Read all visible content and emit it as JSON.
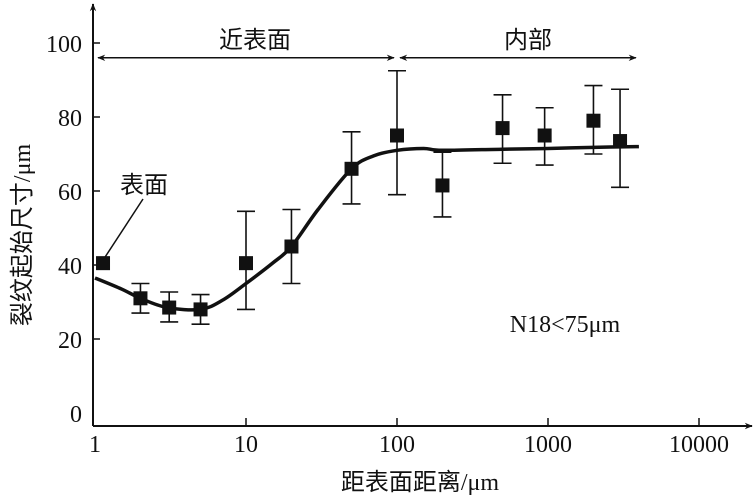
{
  "chart_data": {
    "type": "scatter",
    "xscale": "log",
    "xlabel": "距表面距离/μm",
    "ylabel": "裂纹起始尺寸/μm",
    "xlim": [
      1,
      10000
    ],
    "ylim": [
      0,
      100
    ],
    "x_ticks": [
      1,
      10,
      100,
      1000,
      10000
    ],
    "x_tick_labels": [
      "1",
      "10",
      "100",
      "1000",
      "10000"
    ],
    "y_ticks": [
      0,
      20,
      40,
      60,
      80,
      100
    ],
    "y_tick_labels": [
      "0",
      "20",
      "40",
      "60",
      "80",
      "100"
    ],
    "grid": false,
    "points": [
      {
        "x": 1.13,
        "y": 40.5,
        "err_low": null,
        "err_high": null
      },
      {
        "x": 2,
        "y": 31,
        "err_low": 27,
        "err_high": 35
      },
      {
        "x": 3.1,
        "y": 28.5,
        "err_low": 24.6,
        "err_high": 32.7
      },
      {
        "x": 5,
        "y": 28,
        "err_low": 24,
        "err_high": 32
      },
      {
        "x": 10,
        "y": 40.5,
        "err_low": 28,
        "err_high": 54.5
      },
      {
        "x": 20,
        "y": 45,
        "err_low": 35,
        "err_high": 55
      },
      {
        "x": 50,
        "y": 66,
        "err_low": 56.5,
        "err_high": 76
      },
      {
        "x": 100,
        "y": 75,
        "err_low": 59,
        "err_high": 92.5
      },
      {
        "x": 200,
        "y": 61.5,
        "err_low": 53,
        "err_high": 70.5
      },
      {
        "x": 500,
        "y": 77,
        "err_low": 67.5,
        "err_high": 86
      },
      {
        "x": 950,
        "y": 75,
        "err_low": 67,
        "err_high": 82.5
      },
      {
        "x": 2000,
        "y": 79,
        "err_low": 70,
        "err_high": 88.5
      },
      {
        "x": 3000,
        "y": 73.5,
        "err_low": 61,
        "err_high": 87.5
      }
    ],
    "fit_curve": {
      "x": [
        1,
        1.5,
        2,
        3,
        5,
        7,
        10,
        15,
        20,
        30,
        50,
        70,
        100,
        150,
        200,
        500,
        1000,
        2000,
        4000
      ],
      "y": [
        36.5,
        33.5,
        31,
        28.5,
        28,
        30.5,
        35,
        40.5,
        45,
        55,
        66,
        69.5,
        71,
        71.5,
        71,
        71.3,
        71.5,
        71.8,
        72
      ]
    },
    "regions": [
      {
        "label": "近表面",
        "x_from": 1,
        "x_to": 100,
        "y": 96
      },
      {
        "label": "内部",
        "x_from": 100,
        "x_to": 4000,
        "y": 96
      }
    ],
    "annotations": [
      {
        "text": "表面",
        "points_to_x": 1.13,
        "points_to_y": 40.5
      },
      {
        "text": "N18<75μm"
      }
    ]
  }
}
